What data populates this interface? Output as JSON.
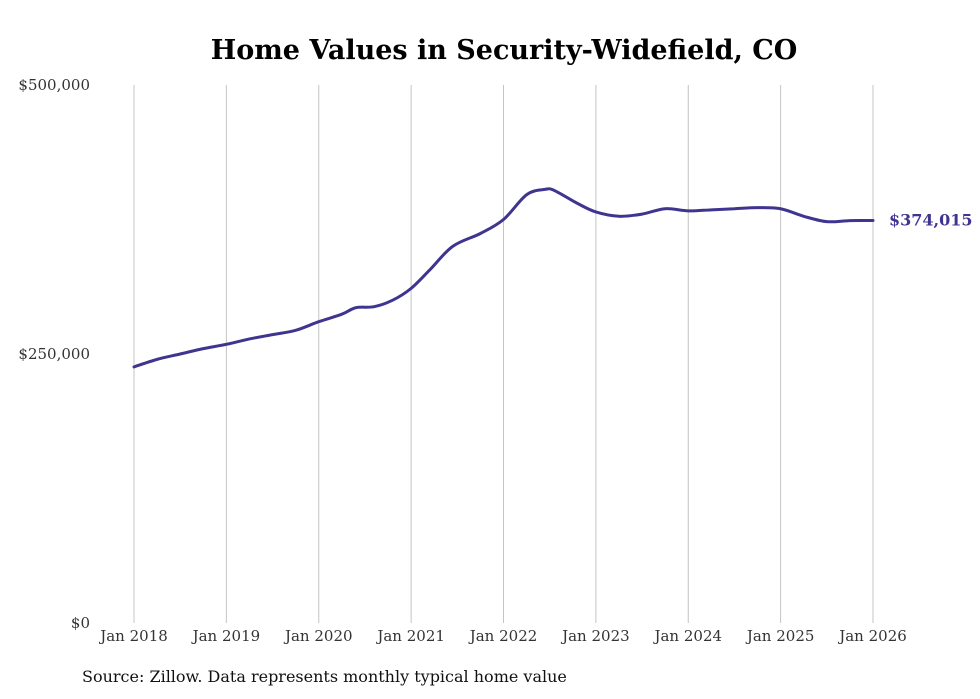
{
  "chart_data": {
    "type": "line",
    "title": "Home Values in Security-Widefield, CO",
    "xlabel": "",
    "ylabel": "",
    "ylim": [
      0,
      500000
    ],
    "y_ticks": [
      {
        "value": 0,
        "label": "$0"
      },
      {
        "value": 250000,
        "label": "$250,000"
      },
      {
        "value": 500000,
        "label": "$500,000"
      }
    ],
    "x_ticks": [
      {
        "value": 2018,
        "label": "Jan 2018"
      },
      {
        "value": 2019,
        "label": "Jan 2019"
      },
      {
        "value": 2020,
        "label": "Jan 2020"
      },
      {
        "value": 2021,
        "label": "Jan 2021"
      },
      {
        "value": 2022,
        "label": "Jan 2022"
      },
      {
        "value": 2023,
        "label": "Jan 2023"
      },
      {
        "value": 2024,
        "label": "Jan 2024"
      },
      {
        "value": 2025,
        "label": "Jan 2025"
      },
      {
        "value": 2026,
        "label": "Jan 2026"
      }
    ],
    "xlim": [
      2018,
      2026
    ],
    "grid": "vertical",
    "series": [
      {
        "name": "Typical home value",
        "color": "#3f3590",
        "points": [
          [
            2018.0,
            238000
          ],
          [
            2018.25,
            245000
          ],
          [
            2018.5,
            250000
          ],
          [
            2018.75,
            255000
          ],
          [
            2019.0,
            259000
          ],
          [
            2019.25,
            264000
          ],
          [
            2019.5,
            268000
          ],
          [
            2019.75,
            272000
          ],
          [
            2020.0,
            280000
          ],
          [
            2020.25,
            287000
          ],
          [
            2020.4,
            293000
          ],
          [
            2020.6,
            294000
          ],
          [
            2020.8,
            300000
          ],
          [
            2021.0,
            311000
          ],
          [
            2021.2,
            328000
          ],
          [
            2021.45,
            350000
          ],
          [
            2021.75,
            362000
          ],
          [
            2022.0,
            375000
          ],
          [
            2022.25,
            398000
          ],
          [
            2022.45,
            403000
          ],
          [
            2022.55,
            402000
          ],
          [
            2022.8,
            390000
          ],
          [
            2023.0,
            382000
          ],
          [
            2023.25,
            378000
          ],
          [
            2023.5,
            380000
          ],
          [
            2023.75,
            385000
          ],
          [
            2024.0,
            383000
          ],
          [
            2024.25,
            384000
          ],
          [
            2024.5,
            385000
          ],
          [
            2024.75,
            386000
          ],
          [
            2025.0,
            385000
          ],
          [
            2025.25,
            378000
          ],
          [
            2025.5,
            373000
          ],
          [
            2025.75,
            374000
          ],
          [
            2026.0,
            374015
          ]
        ]
      }
    ],
    "annotations": [
      {
        "text": "$374,015",
        "x": 2026.0,
        "y": 374015
      }
    ]
  },
  "source_text": "Source: Zillow. Data represents monthly typical home value"
}
